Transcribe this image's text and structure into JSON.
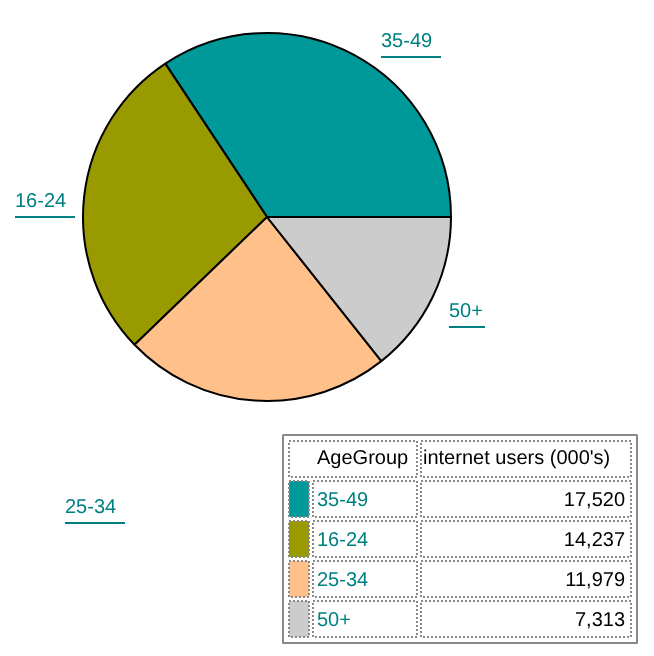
{
  "chart_data": {
    "type": "pie",
    "categories": [
      "35-49",
      "16-24",
      "25-34",
      "50+"
    ],
    "values": [
      17520,
      14237,
      11979,
      7313
    ],
    "colors": [
      "#009999",
      "#999900",
      "#ffc08a",
      "#cccccc"
    ],
    "value_labels": [
      "17,520",
      "14,237",
      "11,979",
      "7,313"
    ],
    "legend": "bottom right",
    "legend_title": "AgeGroup",
    "annotations": [
      "internet users (000's)"
    ]
  }
}
